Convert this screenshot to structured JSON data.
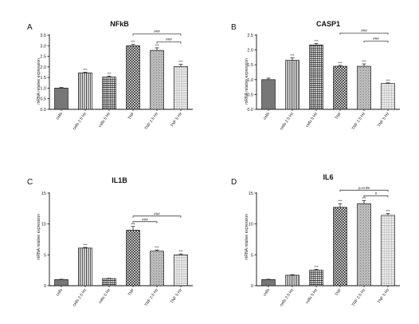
{
  "figure": {
    "ylabel": "mRNA relative expression"
  },
  "colors": {
    "ink": "#111111",
    "solid_bar": "#777777",
    "significance_line": "#222222"
  },
  "chart_data": [
    {
      "panel": "A",
      "title": "NFkB",
      "type": "bar",
      "ylim": [
        0,
        3.5
      ],
      "yticks": [
        0,
        0.5,
        1,
        1.5,
        2,
        2.5,
        3,
        3.5
      ],
      "ytick_labels": [
        "0.0",
        "0.5",
        "1.0",
        "1.5",
        "2.0",
        "2.5",
        "3.0",
        "3.5"
      ],
      "categories": [
        "cells",
        "cells 2.5 Hz",
        "cells 5 Hz",
        "TNF",
        "TNF 2.5 Hz",
        "TNF 5 Hz"
      ],
      "values": [
        1.0,
        1.72,
        1.52,
        3.0,
        2.78,
        2.02
      ],
      "errors": [
        0.03,
        0.03,
        0.05,
        0.06,
        0.12,
        0.1
      ],
      "patterns": [
        "solid",
        "vlines",
        "grid",
        "checker",
        "dots-dense",
        "dots"
      ],
      "bar_labels": [
        "",
        "***",
        "***",
        "***",
        "***",
        "***"
      ],
      "comparisons": [
        {
          "from": 3,
          "to": 5,
          "label": "###"
        },
        {
          "from": 4,
          "to": 5,
          "label": "###"
        }
      ]
    },
    {
      "panel": "B",
      "title": "CASP1",
      "type": "bar",
      "ylim": [
        0,
        2.5
      ],
      "yticks": [
        0,
        0.5,
        1,
        1.5,
        2,
        2.5
      ],
      "ytick_labels": [
        "0.0",
        "0.5",
        "1.0",
        "1.5",
        "2.0",
        "2.5"
      ],
      "categories": [
        "cells",
        "cells 2.5 Hz",
        "cells 5 Hz",
        "TNF",
        "TNF 2.5 Hz",
        "TNF 5 Hz"
      ],
      "values": [
        1.0,
        1.65,
        2.17,
        1.45,
        1.45,
        0.87
      ],
      "errors": [
        0.05,
        0.08,
        0.05,
        0.03,
        0.08,
        0.02
      ],
      "patterns": [
        "solid",
        "vlines",
        "grid",
        "checker",
        "dots-dense",
        "dots"
      ],
      "bar_labels": [
        "",
        "***",
        "***",
        "***",
        "***",
        "***"
      ],
      "comparisons": [
        {
          "from": 3,
          "to": 5,
          "label": "###"
        },
        {
          "from": 4,
          "to": 5,
          "label": "###"
        }
      ]
    },
    {
      "panel": "C",
      "title": "IL1B",
      "type": "bar",
      "ylim": [
        0,
        15
      ],
      "yticks": [
        0,
        5,
        10,
        15
      ],
      "ytick_labels": [
        "0",
        "5",
        "10",
        "15"
      ],
      "categories": [
        "cells",
        "cells 2.5 Hz",
        "cells 5 Hz",
        "TNF",
        "TNF 2.5 Hz",
        "TNF 5 Hz"
      ],
      "values": [
        1.0,
        6.1,
        1.15,
        9.0,
        5.6,
        5.0
      ],
      "errors": [
        0.05,
        0.1,
        0.05,
        0.6,
        0.2,
        0.15
      ],
      "patterns": [
        "solid",
        "vlines",
        "grid",
        "checker",
        "dots-dense",
        "dots"
      ],
      "bar_labels": [
        "",
        "***",
        "",
        "***",
        "***",
        "***"
      ],
      "comparisons": [
        {
          "from": 3,
          "to": 4,
          "label": "###"
        },
        {
          "from": 3,
          "to": 5,
          "label": "###"
        }
      ]
    },
    {
      "panel": "D",
      "title": "IL6",
      "type": "bar",
      "ylim": [
        0,
        15
      ],
      "yticks": [
        0,
        5,
        10,
        15
      ],
      "ytick_labels": [
        "0",
        "5",
        "10",
        "15"
      ],
      "categories": [
        "cells",
        "cells 2.5 Hz",
        "cells 5 Hz",
        "TNF",
        "TNF 2.5 Hz",
        "TNF 5 Hz"
      ],
      "values": [
        1.0,
        1.7,
        2.5,
        12.7,
        13.3,
        11.4
      ],
      "errors": [
        0.05,
        0.08,
        0.15,
        0.6,
        0.5,
        0.3
      ],
      "patterns": [
        "solid",
        "vlines",
        "grid",
        "checker",
        "dots-dense",
        "dots"
      ],
      "bar_labels": [
        "",
        "",
        "***",
        "***",
        "***",
        "***"
      ],
      "comparisons": [
        {
          "from": 3,
          "to": 5,
          "label": "p=0.08"
        },
        {
          "from": 4,
          "to": 5,
          "label": "#"
        }
      ]
    }
  ]
}
